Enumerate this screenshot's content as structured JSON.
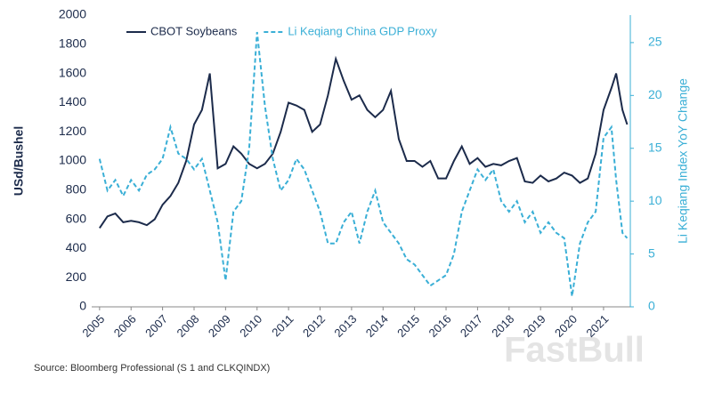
{
  "chart_data": {
    "type": "line",
    "y_label": "USd/Bushel",
    "y2_label": "Li Keqiang Index YoY Change",
    "source": "Source: Bloomberg Professional (S 1 and CLKQINDX)",
    "watermark": "FastBull",
    "x": [
      2005,
      2005.25,
      2005.5,
      2005.75,
      2006,
      2006.25,
      2006.5,
      2006.75,
      2007,
      2007.25,
      2007.5,
      2007.75,
      2008,
      2008.25,
      2008.5,
      2008.75,
      2009,
      2009.25,
      2009.5,
      2009.75,
      2010,
      2010.25,
      2010.5,
      2010.75,
      2011,
      2011.25,
      2011.5,
      2011.75,
      2012,
      2012.25,
      2012.5,
      2012.75,
      2013,
      2013.25,
      2013.5,
      2013.75,
      2014,
      2014.25,
      2014.5,
      2014.75,
      2015,
      2015.25,
      2015.5,
      2015.75,
      2016,
      2016.25,
      2016.5,
      2016.75,
      2017,
      2017.25,
      2017.5,
      2017.75,
      2018,
      2018.25,
      2018.5,
      2018.75,
      2019,
      2019.25,
      2019.5,
      2019.75,
      2020,
      2020.25,
      2020.5,
      2020.75,
      2021,
      2021.25,
      2021.4,
      2021.6,
      2021.75
    ],
    "series": [
      {
        "name": "CBOT Soybeans",
        "color": "#1c2b4b",
        "axis": "y",
        "values": [
          540,
          620,
          640,
          580,
          590,
          580,
          560,
          600,
          700,
          760,
          850,
          1000,
          1250,
          1350,
          1600,
          950,
          980,
          1100,
          1050,
          980,
          950,
          980,
          1050,
          1200,
          1400,
          1380,
          1350,
          1200,
          1250,
          1450,
          1700,
          1550,
          1420,
          1450,
          1350,
          1300,
          1350,
          1480,
          1150,
          1000,
          1000,
          960,
          1000,
          880,
          880,
          1000,
          1100,
          980,
          1020,
          960,
          980,
          970,
          1000,
          1020,
          860,
          850,
          900,
          860,
          880,
          920,
          900,
          850,
          880,
          1050,
          1350,
          1500,
          1600,
          1350,
          1250
        ]
      },
      {
        "name": "Li Keqiang China GDP Proxy",
        "color": "#3aafd6",
        "axis": "y2",
        "dashed": true,
        "values": [
          14,
          11,
          12,
          10.5,
          12,
          11,
          12.5,
          13,
          14,
          17,
          14.5,
          14,
          13,
          14,
          11,
          8,
          2.5,
          9,
          10,
          15,
          26,
          19,
          14,
          11,
          12,
          14,
          13,
          11,
          9,
          6,
          6,
          8,
          9,
          6,
          9,
          11,
          8,
          7,
          6,
          4.5,
          4,
          3,
          2,
          2.5,
          3,
          5,
          9,
          11,
          13,
          12,
          13,
          10,
          9,
          10,
          8,
          9,
          7,
          8,
          7,
          6.5,
          1,
          6,
          8,
          9,
          16,
          17,
          12,
          7,
          6.5
        ]
      }
    ],
    "xlim": [
      2004.75,
      2021.85
    ],
    "xticks": [
      2005,
      2006,
      2007,
      2008,
      2009,
      2010,
      2011,
      2012,
      2013,
      2014,
      2015,
      2016,
      2017,
      2018,
      2019,
      2020,
      2021
    ],
    "ylim": [
      0,
      2000
    ],
    "yticks": [
      0,
      200,
      400,
      600,
      800,
      1000,
      1200,
      1400,
      1600,
      1800,
      2000
    ],
    "y2lim": [
      0,
      27.6
    ],
    "y2ticks": [
      0,
      5,
      10,
      15,
      20,
      25
    ],
    "grid": false,
    "legend": "top-left"
  }
}
